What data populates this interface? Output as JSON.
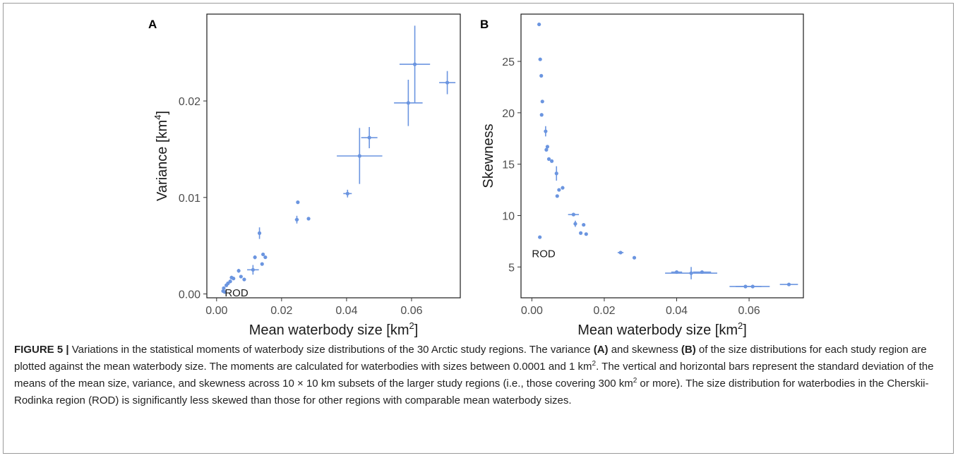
{
  "figure": {
    "label": "FIGURE 5 |",
    "caption_parts": [
      {
        "t": "Variations in the statistical moments of waterbody size distributions of the 30 Arctic study regions. The variance "
      },
      {
        "t": "(A)",
        "b": true
      },
      {
        "t": " and skewness "
      },
      {
        "t": "(B)",
        "b": true
      },
      {
        "t": " of the size distributions for each study region are plotted against the mean waterbody size. The moments are calculated for waterbodies with sizes between 0.0001 and 1 km"
      },
      {
        "t": "2",
        "sup": true
      },
      {
        "t": ". The vertical and horizontal bars represent the standard deviation of the means of the mean size, variance, and skewness across 10 × 10 km subsets of the larger study regions (i.e., those covering 300 km"
      },
      {
        "t": "2",
        "sup": true
      },
      {
        "t": " or more). The size distribution for waterbodies in the Cherskii-Rodinka region (ROD) is significantly less skewed than those for other regions with comparable mean waterbody sizes."
      }
    ]
  },
  "colors": {
    "points": "#6b95e0",
    "axis": "#333333",
    "frame": "#1a1a1a"
  },
  "chart_data": [
    {
      "type": "scatter",
      "panel": "A",
      "xlabel": "Mean waterbody size [km",
      "xlabel_sup": "2",
      "xlabel_end": "]",
      "ylabel": "Variance [km",
      "ylabel_sup": "4",
      "ylabel_end": "]",
      "xlim": [
        -0.003,
        0.075
      ],
      "ylim": [
        -0.0004,
        0.029
      ],
      "xticks": [
        0.0,
        0.02,
        0.04,
        0.06
      ],
      "xtick_labels": [
        "0.00",
        "0.02",
        "0.04",
        "0.06"
      ],
      "yticks": [
        0.0,
        0.01,
        0.02
      ],
      "ytick_labels": [
        "0.00",
        "0.01",
        "0.02"
      ],
      "annotation": {
        "text": "ROD",
        "x": 0.0025,
        "y": 0.0001
      },
      "points": [
        {
          "x": 0.002,
          "y": 0.0003
        },
        {
          "x": 0.0022,
          "y": 0.0006
        },
        {
          "x": 0.0025,
          "y": 0.0002
        },
        {
          "x": 0.003,
          "y": 0.0009
        },
        {
          "x": 0.0035,
          "y": 0.0011
        },
        {
          "x": 0.0042,
          "y": 0.0013
        },
        {
          "x": 0.0046,
          "y": 0.0017
        },
        {
          "x": 0.0052,
          "y": 0.0016
        },
        {
          "x": 0.0068,
          "y": 0.0024,
          "xerr": 0.0003,
          "yerr": 0.0002
        },
        {
          "x": 0.0075,
          "y": 0.0018
        },
        {
          "x": 0.0085,
          "y": 0.0015
        },
        {
          "x": 0.0112,
          "y": 0.0025,
          "xerr": 0.0018,
          "yerr": 0.0005
        },
        {
          "x": 0.0118,
          "y": 0.0038,
          "yerr": 0.0002
        },
        {
          "x": 0.0132,
          "y": 0.0063,
          "yerr": 0.0006
        },
        {
          "x": 0.014,
          "y": 0.0031
        },
        {
          "x": 0.0143,
          "y": 0.0041
        },
        {
          "x": 0.015,
          "y": 0.0038
        },
        {
          "x": 0.0247,
          "y": 0.0077,
          "xerr": 0.0006,
          "yerr": 0.0004
        },
        {
          "x": 0.025,
          "y": 0.0095
        },
        {
          "x": 0.0283,
          "y": 0.0078
        },
        {
          "x": 0.0403,
          "y": 0.0104,
          "xerr": 0.0013,
          "yerr": 0.0004
        },
        {
          "x": 0.044,
          "y": 0.0143,
          "xerr": 0.007,
          "yerr": 0.0029
        },
        {
          "x": 0.047,
          "y": 0.0162,
          "xerr": 0.0025,
          "yerr": 0.0011
        },
        {
          "x": 0.059,
          "y": 0.0198,
          "xerr": 0.0044,
          "yerr": 0.0024
        },
        {
          "x": 0.061,
          "y": 0.0238,
          "xerr": 0.0047,
          "yerr": 0.004
        },
        {
          "x": 0.071,
          "y": 0.0219,
          "xerr": 0.0025,
          "yerr": 0.0012
        }
      ]
    },
    {
      "type": "scatter",
      "panel": "B",
      "xlabel": "Mean waterbody size [km",
      "xlabel_sup": "2",
      "xlabel_end": "]",
      "ylabel": "Skewness",
      "xlim": [
        -0.003,
        0.075
      ],
      "ylim": [
        2.0,
        29.6
      ],
      "xticks": [
        0.0,
        0.02,
        0.04,
        0.06
      ],
      "xtick_labels": [
        "0.00",
        "0.02",
        "0.04",
        "0.06"
      ],
      "yticks": [
        5,
        10,
        15,
        20,
        25
      ],
      "ytick_labels": [
        "5",
        "10",
        "15",
        "20",
        "25"
      ],
      "annotation": {
        "text": "ROD",
        "x": 0.0,
        "y": 6.3
      },
      "points": [
        {
          "x": 0.002,
          "y": 28.6
        },
        {
          "x": 0.0023,
          "y": 25.2
        },
        {
          "x": 0.0026,
          "y": 23.6
        },
        {
          "x": 0.0029,
          "y": 21.1
        },
        {
          "x": 0.0027,
          "y": 19.8
        },
        {
          "x": 0.0038,
          "y": 18.2,
          "yerr": 0.5
        },
        {
          "x": 0.004,
          "y": 16.4
        },
        {
          "x": 0.0043,
          "y": 16.7
        },
        {
          "x": 0.0047,
          "y": 15.5
        },
        {
          "x": 0.0055,
          "y": 15.3
        },
        {
          "x": 0.0068,
          "y": 14.1,
          "yerr": 0.7
        },
        {
          "x": 0.007,
          "y": 11.9
        },
        {
          "x": 0.0075,
          "y": 12.5
        },
        {
          "x": 0.0085,
          "y": 12.7
        },
        {
          "x": 0.0022,
          "y": 7.9
        },
        {
          "x": 0.0115,
          "y": 10.1,
          "xerr": 0.0015
        },
        {
          "x": 0.012,
          "y": 9.2,
          "yerr": 0.3
        },
        {
          "x": 0.0135,
          "y": 8.3
        },
        {
          "x": 0.0143,
          "y": 9.1
        },
        {
          "x": 0.015,
          "y": 8.2
        },
        {
          "x": 0.0245,
          "y": 6.4,
          "xerr": 0.0008
        },
        {
          "x": 0.0283,
          "y": 5.9
        },
        {
          "x": 0.04,
          "y": 4.5,
          "xerr": 0.0015
        },
        {
          "x": 0.044,
          "y": 4.4,
          "xerr": 0.0072,
          "yerr": 0.6
        },
        {
          "x": 0.047,
          "y": 4.5,
          "xerr": 0.0025
        },
        {
          "x": 0.059,
          "y": 3.1,
          "xerr": 0.0044
        },
        {
          "x": 0.061,
          "y": 3.1,
          "xerr": 0.0047
        },
        {
          "x": 0.071,
          "y": 3.3,
          "xerr": 0.0025
        }
      ]
    }
  ]
}
